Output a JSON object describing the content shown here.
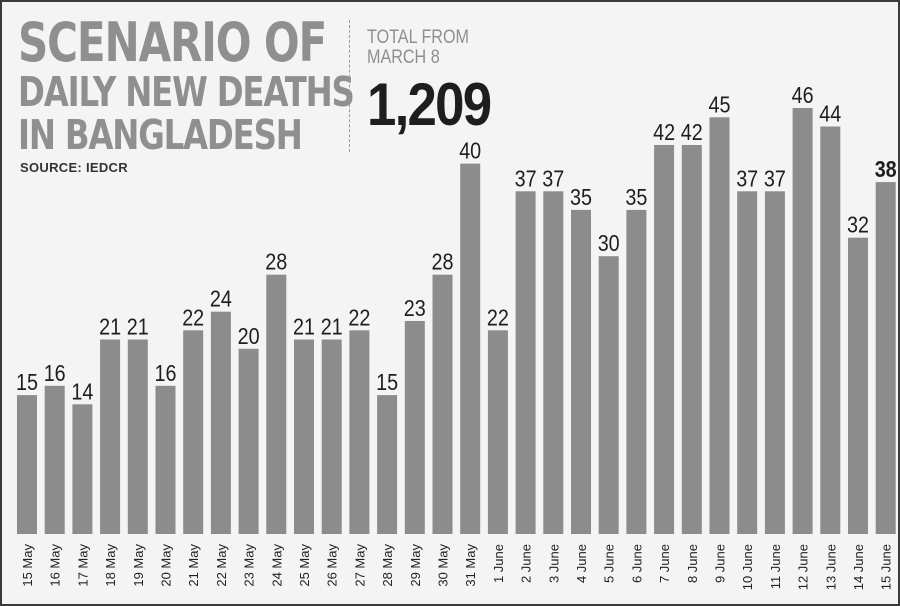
{
  "header": {
    "title_lines": [
      "SCENARIO OF",
      "DAILY NEW DEATHS",
      "IN BANGLADESH"
    ],
    "source": "SOURCE: IEDCR",
    "total_label_lines": [
      "TOTAL FROM",
      "MARCH 8"
    ],
    "total_value": "1,209"
  },
  "colors": {
    "background": "#f4f4f4",
    "bar": "#8c8c8c",
    "title": "#8f8f8f",
    "value_label": "#1e1e1e"
  },
  "chart_data": {
    "type": "bar",
    "title": "SCENARIO OF DAILY NEW DEATHS IN BANGLADESH",
    "xlabel": "",
    "ylabel": "",
    "ylim": [
      0,
      46
    ],
    "grid": false,
    "legend": "none",
    "highlight_last": true,
    "categories": [
      "15 May",
      "16 May",
      "17 May",
      "18 May",
      "19 May",
      "20 May",
      "21 May",
      "22 May",
      "23 May",
      "24 May",
      "25 May",
      "26 May",
      "27 May",
      "28 May",
      "29 May",
      "30 May",
      "31 May",
      "1 June",
      "2 June",
      "3 June",
      "4 June",
      "5 June",
      "6 June",
      "7 June",
      "8 June",
      "9 June",
      "10 June",
      "11 June",
      "12 June",
      "13 June",
      "14 June",
      "15 June"
    ],
    "values": [
      15,
      16,
      14,
      21,
      21,
      16,
      22,
      24,
      20,
      28,
      21,
      21,
      22,
      15,
      23,
      28,
      40,
      22,
      37,
      37,
      35,
      30,
      35,
      42,
      42,
      45,
      37,
      37,
      46,
      44,
      32,
      38
    ]
  }
}
